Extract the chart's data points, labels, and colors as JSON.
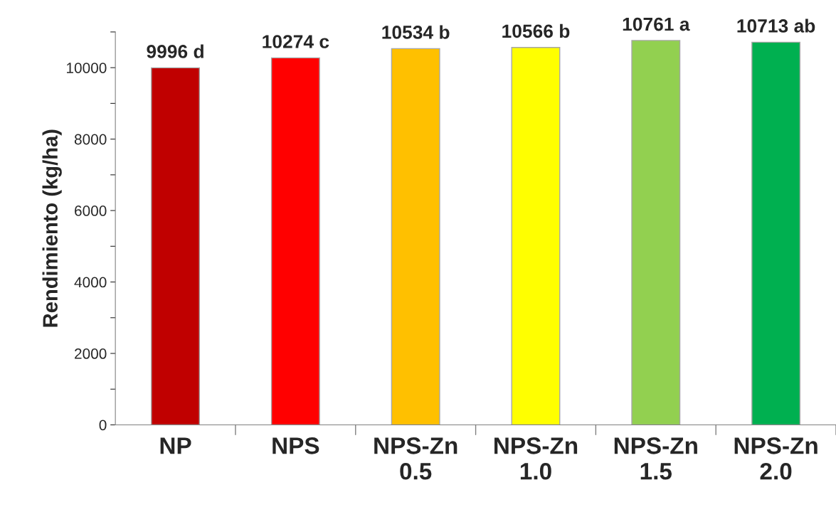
{
  "chart_data": {
    "type": "bar",
    "ylabel": "Rendimiento (kg/ha)",
    "categories": [
      "NP",
      "NPS",
      "NPS-Zn\n0.5",
      "NPS-Zn\n1.0",
      "NPS-Zn\n1.5",
      "NPS-Zn\n2.0"
    ],
    "values": [
      9996,
      10274,
      10534,
      10566,
      10761,
      10713
    ],
    "value_labels": [
      "9996 d",
      "10274 c",
      "10534 b",
      "10566 b",
      "10761 a",
      "10713 ab"
    ],
    "colors": [
      "#c00000",
      "#ff0000",
      "#ffc000",
      "#ffff00",
      "#92d050",
      "#00b050"
    ],
    "ylim": [
      0,
      11000
    ],
    "yticks": [
      0,
      {
        "value": 1000,
        "label": null
      },
      2000,
      {
        "value": 3000,
        "label": null
      },
      4000,
      {
        "value": 5000,
        "label": null
      },
      6000,
      {
        "value": 7000,
        "label": null
      },
      8000,
      {
        "value": 9000,
        "label": null
      },
      10000,
      {
        "value": 11000,
        "label": null
      }
    ],
    "grid": false
  }
}
